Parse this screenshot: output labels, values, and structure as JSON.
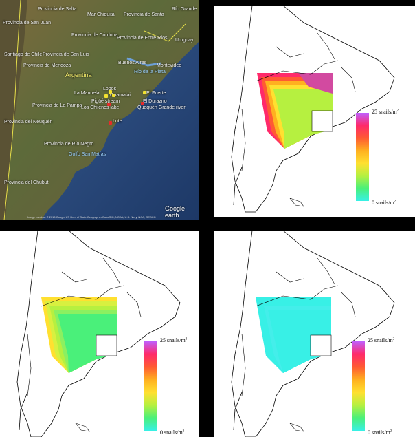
{
  "satellite": {
    "labels": [
      {
        "id": "provincia-de-salta",
        "text": "Provincia de Salta",
        "style": "white"
      },
      {
        "id": "mar-chiquita",
        "text": "Mar Chiquita",
        "style": "white"
      },
      {
        "id": "provincia-de-santa",
        "text": "Provincia de Santa",
        "style": "white"
      },
      {
        "id": "rio-grande",
        "text": "Río Grande",
        "style": "white"
      },
      {
        "id": "provincia-de-san-juan",
        "text": "Provincia de San Juan",
        "style": "white"
      },
      {
        "id": "provincia-de-cordoba",
        "text": "Provincia de Córdoba",
        "style": "white"
      },
      {
        "id": "provincia-de-entre-rios",
        "text": "Provincia de Entre Ríos",
        "style": "white"
      },
      {
        "id": "uruguay",
        "text": "Uruguay",
        "style": "white"
      },
      {
        "id": "santiago-de-chile",
        "text": "Santiago de Chile",
        "style": "white"
      },
      {
        "id": "provincia-de-san-luis",
        "text": "Provincia de San Luis",
        "style": "white"
      },
      {
        "id": "provincia-de-mendoza",
        "text": "Provincia de Mendoza",
        "style": "white"
      },
      {
        "id": "buenos-aires",
        "text": "Buenos Aires",
        "style": "white"
      },
      {
        "id": "montevideo",
        "text": "Montevideo",
        "style": "white"
      },
      {
        "id": "rio-de-la-plata",
        "text": "Río de la Plata",
        "style": "blue"
      },
      {
        "id": "argentina",
        "text": "Argentina",
        "style": "yellow"
      },
      {
        "id": "la-manuela",
        "text": "La Manuela",
        "style": "white"
      },
      {
        "id": "lobos",
        "text": "Lobos",
        "style": "white"
      },
      {
        "id": "guamalai",
        "text": "Guamalai",
        "style": "white"
      },
      {
        "id": "el-fuerte",
        "text": "El Fuerte",
        "style": "white"
      },
      {
        "id": "pigue-stream",
        "text": "Pigüé stream",
        "style": "white"
      },
      {
        "id": "provincia-de-la-pampa",
        "text": "Provincia de La Pampa",
        "style": "white"
      },
      {
        "id": "el-durazno",
        "text": "El Durazno",
        "style": "white"
      },
      {
        "id": "los-chilenos-lake",
        "text": "Los Chilenos lake",
        "style": "white"
      },
      {
        "id": "quequen-grande-river",
        "text": "Quequén Grande river",
        "style": "white"
      },
      {
        "id": "provincia-del-neuquen",
        "text": "Provincia del Neuquén",
        "style": "white"
      },
      {
        "id": "lote",
        "text": "Lote",
        "style": "white"
      },
      {
        "id": "provincia-de-rio-negro",
        "text": "Provincia de Río Negro",
        "style": "white"
      },
      {
        "id": "golfo-san-matias",
        "text": "Golfo San Matías",
        "style": "blue"
      },
      {
        "id": "provincia-del-chubut",
        "text": "Provincia del Chubut",
        "style": "white"
      }
    ],
    "google_logo": "Google earth",
    "statusbar": "Image Landsat  © 2013 Google  US Dept of State Geographer  Data SIO, NOAA, U.S. Navy, NGA, GEBCO"
  },
  "legend": {
    "max_label": "25 snails/m",
    "max_exp": "2",
    "min_label": "0  snails/m",
    "min_exp": "2"
  },
  "colors": {
    "scale": [
      "#bf5fff",
      "#ff2a6a",
      "#ff5a33",
      "#ffb020",
      "#ffe030",
      "#b6f040",
      "#4af07a",
      "#38f0e6"
    ],
    "ocean": "#ffffff",
    "outline": "#000000"
  }
}
